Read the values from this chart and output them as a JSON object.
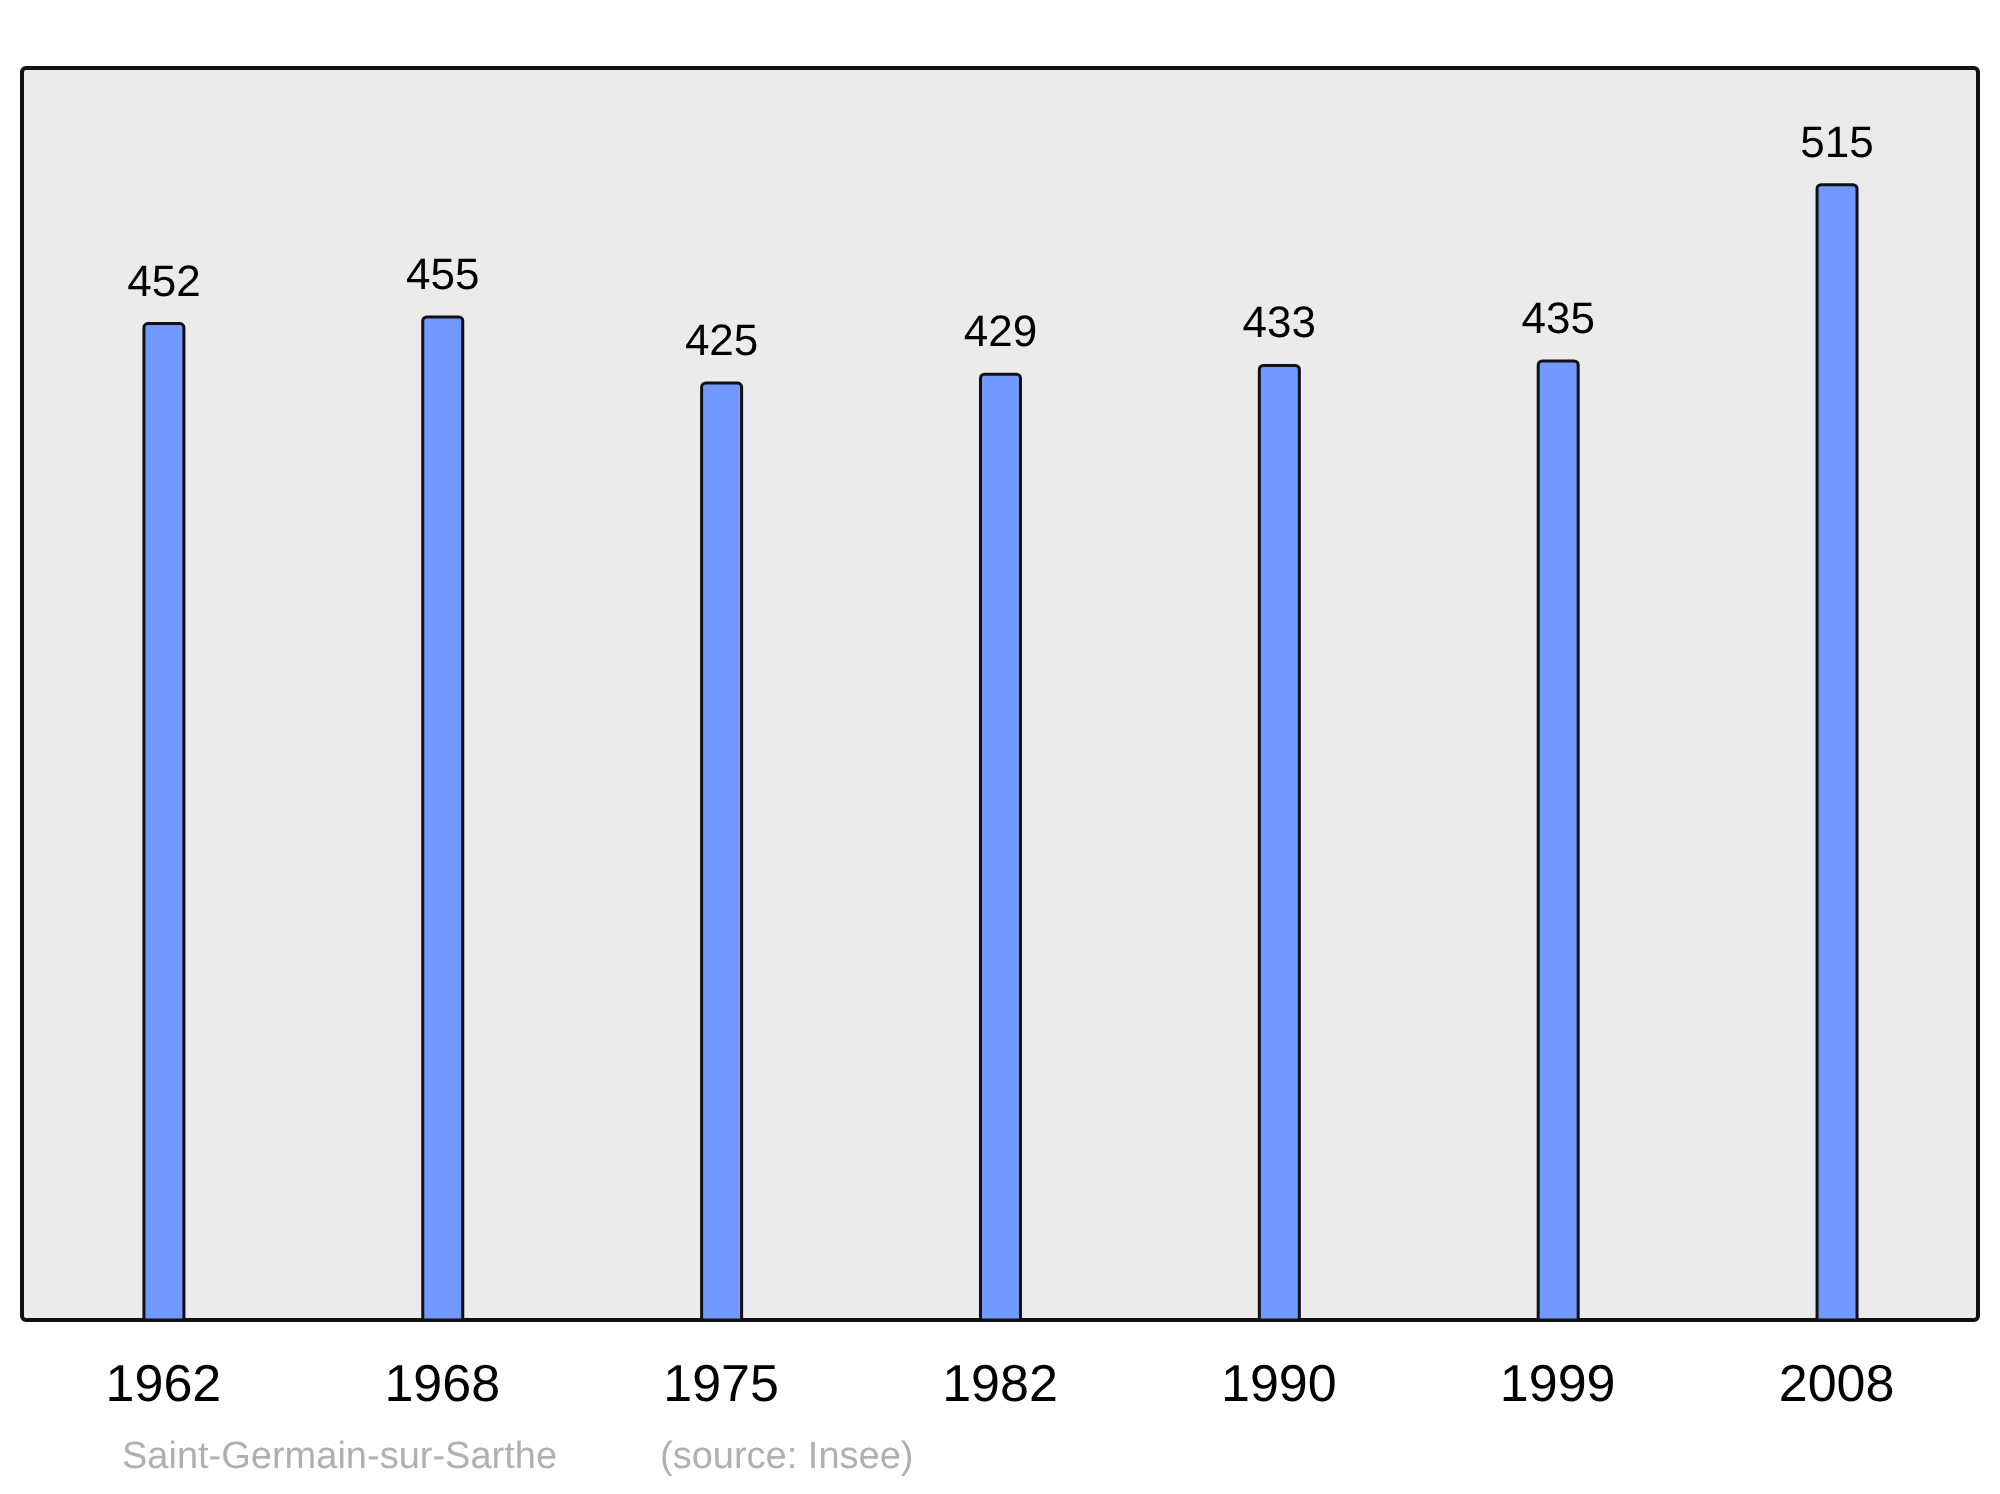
{
  "chart_data": {
    "type": "bar",
    "categories": [
      "1962",
      "1968",
      "1975",
      "1982",
      "1990",
      "1999",
      "2008"
    ],
    "values": [
      452,
      455,
      425,
      429,
      433,
      435,
      515
    ],
    "color": "#7299ff",
    "data_labels": true,
    "ylim": [
      0,
      567
    ],
    "annotations": [
      "Saint-Germain-sur-Sarthe",
      "(source: Insee)"
    ]
  }
}
